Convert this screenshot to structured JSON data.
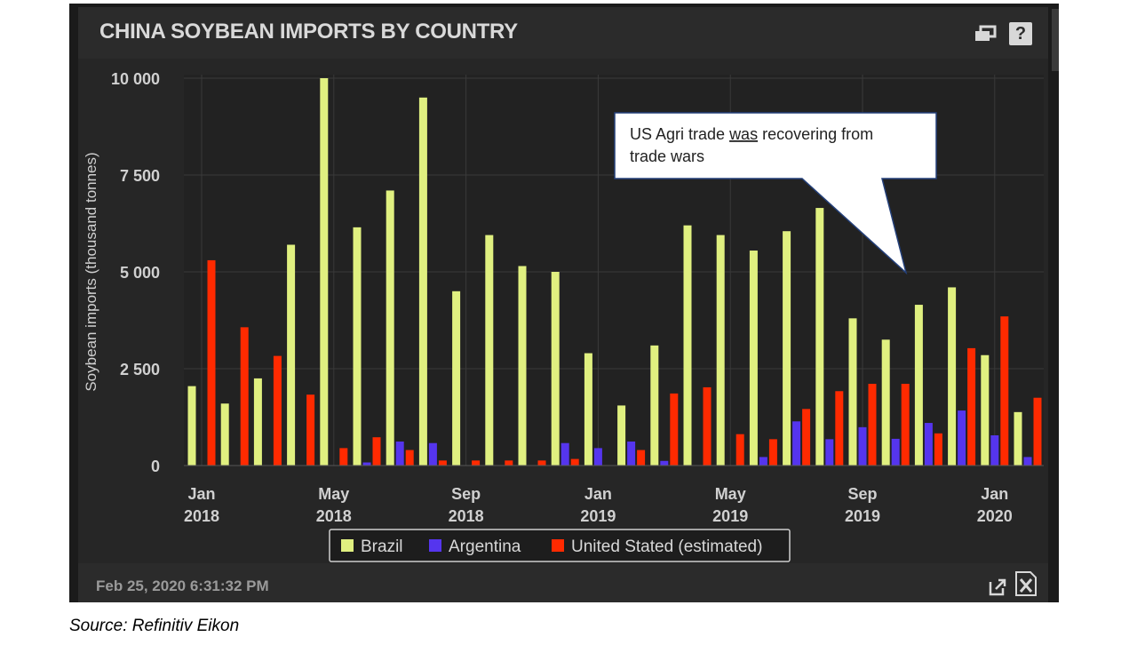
{
  "header": {
    "title": "CHINA SOYBEAN IMPORTS BY COUNTRY",
    "help_label": "?"
  },
  "footer": {
    "timestamp": "Feb 25, 2020 6:31:32 PM"
  },
  "source": "Source: Refinitiv Eikon",
  "colors": {
    "brazil": "#e0f080",
    "argentina": "#5535ee",
    "us": "#ff2a00"
  },
  "icons": {
    "popout": "popout-icon",
    "help": "help-icon",
    "export": "export-icon",
    "excel": "excel-icon"
  },
  "chart_data": {
    "type": "bar",
    "title": "CHINA SOYBEAN IMPORTS BY COUNTRY",
    "ylabel": "Soybean imports (thousand tonnes)",
    "xlabel": "",
    "ylim": [
      0,
      10000
    ],
    "yticks": [
      "10 000",
      "7 500",
      "5 000",
      "2 500",
      "0"
    ],
    "ytick_values": [
      10000,
      7500,
      5000,
      2500,
      0
    ],
    "grid": true,
    "legend_position": "bottom",
    "xticks": [
      {
        "month": "Jan",
        "year": "2018",
        "index": 0
      },
      {
        "month": "May",
        "year": "2018",
        "index": 4
      },
      {
        "month": "Sep",
        "year": "2018",
        "index": 8
      },
      {
        "month": "Jan",
        "year": "2019",
        "index": 12
      },
      {
        "month": "May",
        "year": "2019",
        "index": 16
      },
      {
        "month": "Sep",
        "year": "2019",
        "index": 20
      },
      {
        "month": "Jan",
        "year": "2020",
        "index": 24
      }
    ],
    "categories": [
      "2018-01",
      "2018-02",
      "2018-03",
      "2018-04",
      "2018-05",
      "2018-06",
      "2018-07",
      "2018-08",
      "2018-09",
      "2018-10",
      "2018-11",
      "2018-12",
      "2019-01",
      "2019-02",
      "2019-03",
      "2019-04",
      "2019-05",
      "2019-06",
      "2019-07",
      "2019-08",
      "2019-09",
      "2019-10",
      "2019-11",
      "2019-12",
      "2020-01",
      "2020-02"
    ],
    "series": [
      {
        "name": "Brazil",
        "color": "#e0f080",
        "values": [
          2050,
          1600,
          2250,
          5700,
          10000,
          6150,
          7100,
          9500,
          4500,
          5950,
          5150,
          5000,
          2900,
          1550,
          3100,
          6200,
          5950,
          5550,
          6050,
          6650,
          3800,
          3250,
          4150,
          4600,
          2850,
          1380
        ]
      },
      {
        "name": "Argentina",
        "color": "#5535ee",
        "values": [
          0,
          0,
          0,
          0,
          0,
          80,
          620,
          580,
          0,
          0,
          0,
          580,
          450,
          620,
          120,
          0,
          0,
          220,
          1140,
          680,
          990,
          690,
          1100,
          1420,
          780,
          220
        ]
      },
      {
        "name": "United Stated (estimated)",
        "color": "#ff2a00",
        "values": [
          5300,
          3570,
          2830,
          1830,
          450,
          730,
          400,
          130,
          130,
          130,
          130,
          170,
          0,
          400,
          1860,
          2020,
          810,
          680,
          1460,
          1920,
          2110,
          2110,
          830,
          3030,
          3850,
          1750
        ]
      }
    ],
    "annotation": {
      "text_part1": "US Agri trade ",
      "text_underlined": "was",
      "text_part2": " recovering from trade wars"
    }
  }
}
